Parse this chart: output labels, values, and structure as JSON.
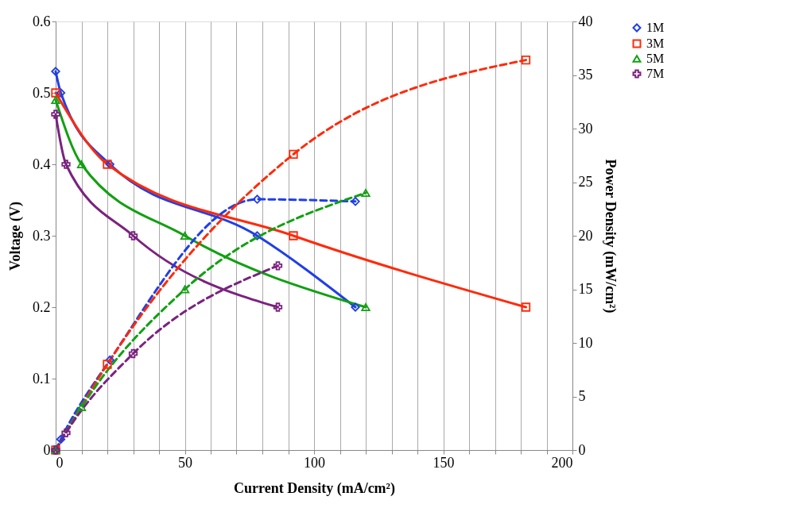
{
  "chart_data": {
    "type": "line",
    "xlabel": "Current Density (mA/cm²)",
    "ylabel": "Voltage (V)",
    "y2label": "Power Density (mW/cm²)",
    "xlim": [
      0,
      200
    ],
    "xticks": [
      0,
      {
        "value": 10,
        "label": null
      },
      {
        "value": 20,
        "label": null
      },
      {
        "value": 30,
        "label": null
      },
      {
        "value": 40,
        "label": null
      },
      50,
      {
        "value": 60,
        "label": null
      },
      {
        "value": 70,
        "label": null
      },
      {
        "value": 80,
        "label": null
      },
      {
        "value": 90,
        "label": null
      },
      100,
      {
        "value": 110,
        "label": null
      },
      {
        "value": 120,
        "label": null
      },
      {
        "value": 130,
        "label": null
      },
      {
        "value": 140,
        "label": null
      },
      150,
      {
        "value": 160,
        "label": null
      },
      {
        "value": 170,
        "label": null
      },
      {
        "value": 180,
        "label": null
      },
      {
        "value": 190,
        "label": null
      },
      200
    ],
    "ylim": [
      0,
      0.6
    ],
    "yticks": [
      0,
      0.1,
      0.2,
      0.3,
      0.4,
      0.5,
      0.6
    ],
    "y2lim": [
      0,
      40
    ],
    "y2ticks": [
      0,
      5,
      10,
      15,
      20,
      25,
      30,
      35,
      40
    ],
    "grid": "x",
    "legend": "right",
    "series": [
      {
        "name": "1M",
        "color": "#1f3fe8",
        "x": [
          0,
          2,
          21,
          78,
          116
        ],
        "values": [
          0.53,
          0.5,
          0.4,
          0.3,
          0.2
        ],
        "marker": "diamond",
        "line_style": "solid"
      },
      {
        "name": "3M",
        "color": "#ff2a0a",
        "x": [
          0,
          20,
          92,
          182
        ],
        "values": [
          0.5,
          0.4,
          0.3,
          0.2
        ],
        "marker": "square",
        "line_style": "solid"
      },
      {
        "name": "5M",
        "color": "#12a012",
        "x": [
          0,
          10,
          50,
          120
        ],
        "values": [
          0.49,
          0.4,
          0.3,
          0.2
        ],
        "marker": "triangle",
        "line_style": "solid"
      },
      {
        "name": "7M",
        "color": "#7a237f",
        "x": [
          0,
          4,
          30,
          86
        ],
        "values": [
          0.47,
          0.4,
          0.3,
          0.2
        ],
        "marker": "cross",
        "line_style": "solid"
      },
      {
        "color": "#1f3fe8",
        "x": [
          0,
          2,
          21,
          78,
          116
        ],
        "values": [
          0,
          1.0,
          8.4,
          23.4,
          23.2
        ],
        "marker": "diamond",
        "line_style": "dashed",
        "axis": "y2"
      },
      {
        "color": "#ff2a0a",
        "x": [
          0,
          20,
          92,
          182
        ],
        "values": [
          0,
          8.0,
          27.6,
          36.4
        ],
        "marker": "square",
        "line_style": "dashed",
        "axis": "y2"
      },
      {
        "color": "#12a012",
        "x": [
          0,
          10,
          50,
          120
        ],
        "values": [
          0,
          4.0,
          15.0,
          24.0
        ],
        "marker": "triangle",
        "line_style": "dashed",
        "axis": "y2"
      },
      {
        "color": "#7a237f",
        "x": [
          0,
          4,
          30,
          86
        ],
        "values": [
          0,
          1.6,
          9.0,
          17.2
        ],
        "marker": "cross",
        "line_style": "dashed",
        "axis": "y2"
      }
    ]
  }
}
